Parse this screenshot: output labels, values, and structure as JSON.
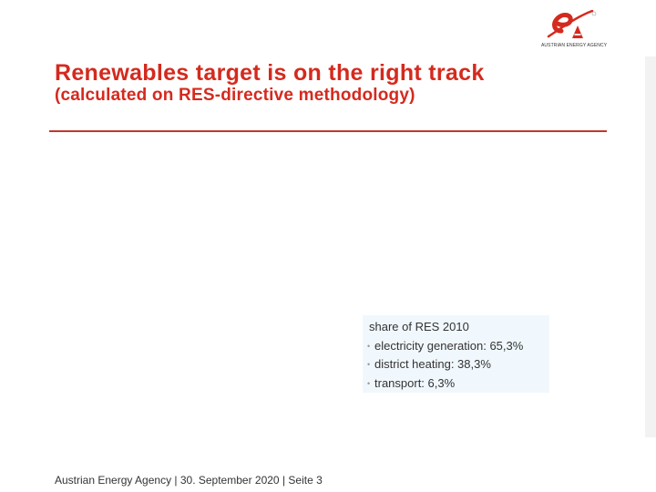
{
  "slide": {
    "title": "Renewables target is on the right track",
    "subtitle": "(calculated on RES-directive methodology)",
    "info_box": {
      "heading": "share of RES 2010",
      "items": [
        "electricity generation: 65,3%",
        "district heating: 38,3%",
        "transport: 6,3%"
      ]
    },
    "footer": "Austrian Energy Agency  | 30. September 2020 | Seite 3",
    "logo": {
      "text": "AUSTRIAN ENERGY AGENCY",
      "icon": "austrian-energy-agency-logo"
    },
    "colors": {
      "title": "#d42a1e",
      "rule": "#c0392b",
      "info_box_bg": "#f1f8fd"
    }
  }
}
